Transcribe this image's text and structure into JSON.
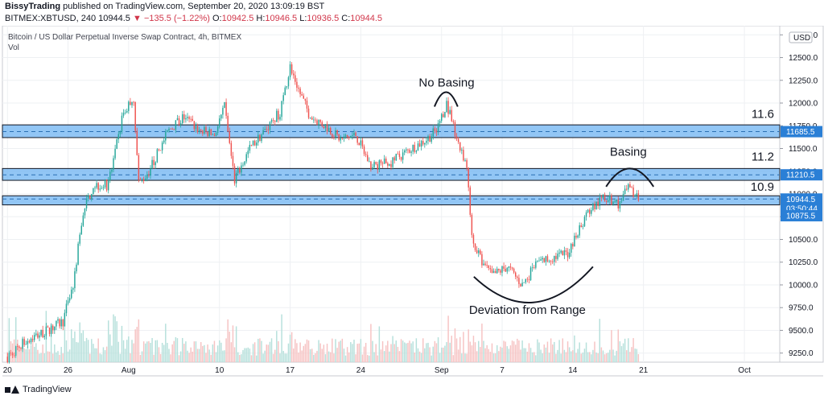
{
  "header": {
    "author": "BissyTrading",
    "published_text": "published on TradingView.com, September 20, 2020 13:09:19 BST",
    "symbol": "BITMEX:XBTUSD, 240",
    "last": "10944.5",
    "change": "−135.5 (−1.22%)",
    "o_label": "O:",
    "o": "10942.5",
    "h_label": "H:",
    "h": "10946.5",
    "l_label": "L:",
    "l": "10936.5",
    "c_label": "C:",
    "c": "10944.5"
  },
  "legend": {
    "title": "Bitcoin / US Dollar Perpetual Inverse Swap Contract, 4h, BITMEX",
    "vol": "Vol"
  },
  "footer": {
    "brand": "TradingView"
  },
  "colors": {
    "up": "#26a69a",
    "down": "#ef5350",
    "zone": "#6db3f2",
    "zone_tag": "#2a7fd6"
  },
  "chart_data": {
    "type": "candlestick",
    "title": "Bitcoin / US Dollar Perpetual Inverse Swap Contract, 4h, BITMEX",
    "ylim": [
      9150,
      12850
    ],
    "currency_badge": "USD",
    "y_ticks": [
      "12750.0",
      "12500.0",
      "12250.0",
      "12000.0",
      "11750.0",
      "11500.0",
      "11250.0",
      "11000.0",
      "10750.0",
      "10500.0",
      "10250.0",
      "10000.0",
      "9750.0",
      "9500.0",
      "9250.0"
    ],
    "x_ticks": [
      "20",
      "26",
      "Aug",
      "10",
      "17",
      "24",
      "Sep",
      "7",
      "14",
      "21",
      "Oct"
    ],
    "x_tick_days": [
      0,
      6,
      12,
      21,
      28,
      35,
      43,
      49,
      56,
      63,
      73
    ],
    "x_range_days": [
      -0.5,
      76.5
    ],
    "price_path": [
      [
        0,
        9210
      ],
      [
        2,
        9400
      ],
      [
        4,
        9500
      ],
      [
        5.5,
        9600
      ],
      [
        6.5,
        10000
      ],
      [
        7.5,
        10800
      ],
      [
        8.5,
        11100
      ],
      [
        10,
        11100
      ],
      [
        11.5,
        11900
      ],
      [
        12.5,
        12050
      ],
      [
        13,
        11100
      ],
      [
        14,
        11250
      ],
      [
        16,
        11700
      ],
      [
        17.5,
        11850
      ],
      [
        19,
        11700
      ],
      [
        20.5,
        11650
      ],
      [
        21.5,
        11950
      ],
      [
        22.5,
        11150
      ],
      [
        24,
        11500
      ],
      [
        25.5,
        11700
      ],
      [
        27,
        11900
      ],
      [
        28,
        12400
      ],
      [
        29,
        12100
      ],
      [
        30,
        11850
      ],
      [
        31.5,
        11750
      ],
      [
        33,
        11600
      ],
      [
        34.5,
        11650
      ],
      [
        36,
        11300
      ],
      [
        38,
        11350
      ],
      [
        40,
        11500
      ],
      [
        41.5,
        11600
      ],
      [
        42.5,
        11700
      ],
      [
        43.5,
        12000
      ],
      [
        44.5,
        11600
      ],
      [
        45.5,
        11300
      ],
      [
        46,
        10500
      ],
      [
        47,
        10250
      ],
      [
        48,
        10100
      ],
      [
        49.5,
        10200
      ],
      [
        51,
        10000
      ],
      [
        52.5,
        10250
      ],
      [
        54,
        10300
      ],
      [
        55.5,
        10350
      ],
      [
        56.5,
        10600
      ],
      [
        57.5,
        10800
      ],
      [
        59,
        10950
      ],
      [
        60.5,
        10900
      ],
      [
        61.5,
        11050
      ],
      [
        62.5,
        10950
      ]
    ],
    "zones": [
      {
        "label": "11.6",
        "low": 11620,
        "high": 11760,
        "mid": 11685.5,
        "tag": "11685.5"
      },
      {
        "label": "11.2",
        "low": 11150,
        "high": 11280,
        "mid": 11210.5,
        "tag": "11210.5"
      },
      {
        "label": "10.9",
        "low": 10880,
        "high": 10980,
        "mid": 10944.5,
        "tag": ""
      }
    ],
    "price_tags": [
      {
        "value": 10944.5,
        "text": "10944.5",
        "kind": "last"
      },
      {
        "value": 10875.5,
        "text": "10875.5",
        "kind": "zone"
      }
    ],
    "countdown": "03:50:44",
    "annotations": [
      {
        "text": "No Basing",
        "day": 43.5,
        "price": 12180
      },
      {
        "text": "Basing",
        "day": 61.5,
        "price": 11420
      },
      {
        "text": "Deviation from Range",
        "day": 51.5,
        "price": 9680
      }
    ],
    "level_labels": [
      {
        "text": "11.6",
        "price": 11800
      },
      {
        "text": "11.2",
        "price": 11330
      },
      {
        "text": "10.9",
        "price": 11000
      }
    ],
    "arcs": [
      {
        "name": "no-basing-arc",
        "from": [
          42.3,
          11960
        ],
        "to": [
          44.6,
          11960
        ],
        "top": 12120
      },
      {
        "name": "basing-arc",
        "from": [
          59.3,
          11080
        ],
        "to": [
          64,
          11080
        ],
        "top": 11280
      },
      {
        "name": "deviation-arc",
        "from": [
          46.2,
          10090
        ],
        "to": [
          58,
          10200
        ],
        "bottom": 9780
      }
    ]
  }
}
